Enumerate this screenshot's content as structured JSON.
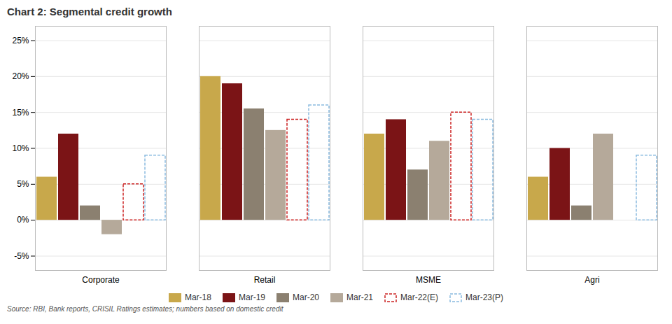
{
  "chart_data": {
    "type": "bar",
    "title": "Chart 2: Segmental credit growth",
    "caption": "Source: RBI, Bank reports, CRISIL Ratings estimates; numbers based on domestic credit",
    "categories": [
      "Corporate",
      "Retail",
      "MSME",
      "Agri"
    ],
    "series": [
      {
        "name": "Mar-18",
        "color": "#C8A84B",
        "line_style": "solid",
        "values": [
          0.06,
          0.2,
          0.12,
          0.06
        ]
      },
      {
        "name": "Mar-19",
        "color": "#7B1416",
        "line_style": "solid",
        "values": [
          0.12,
          0.19,
          0.14,
          0.1
        ]
      },
      {
        "name": "Mar-20",
        "color": "#8B8070",
        "line_style": "solid",
        "values": [
          0.02,
          0.155,
          0.07,
          0.02
        ]
      },
      {
        "name": "Mar-21",
        "color": "#B5A99A",
        "line_style": "solid",
        "values": [
          -0.02,
          0.125,
          0.11,
          0.12
        ]
      },
      {
        "name": "Mar-22(E)",
        "color": "#CC2222",
        "line_style": "dashed",
        "values": [
          0.05,
          0.14,
          0.15,
          0
        ]
      },
      {
        "name": "Mar-23(P)",
        "color": "#8ABBE0",
        "line_style": "dashed",
        "values": [
          0.09,
          0.16,
          0.14,
          0.09
        ]
      }
    ],
    "ylim": [
      -0.07,
      0.27
    ],
    "yticks": [
      {
        "value": -0.05,
        "label": "-5%"
      },
      {
        "value": 0.0,
        "label": "0%"
      },
      {
        "value": 0.05,
        "label": "5%"
      },
      {
        "value": 0.1,
        "label": "10%"
      },
      {
        "value": 0.15,
        "label": "15%"
      },
      {
        "value": 0.2,
        "label": "20%"
      },
      {
        "value": 0.25,
        "label": "25%"
      }
    ],
    "grid": true,
    "legend": "bottom"
  }
}
